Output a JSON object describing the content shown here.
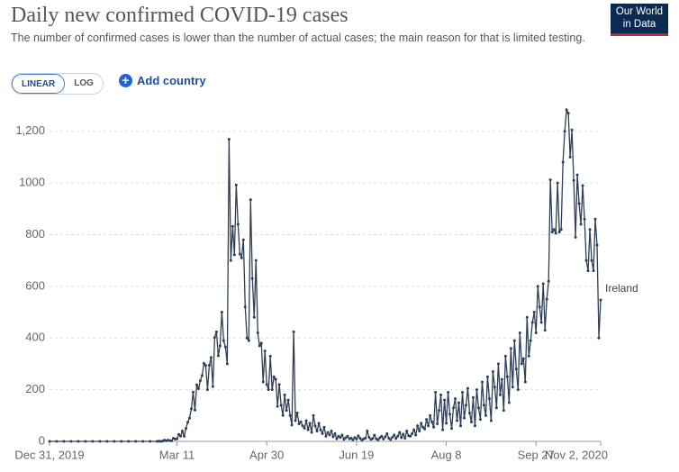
{
  "chart_data": {
    "type": "line",
    "title": "Daily new confirmed COVID-19 cases",
    "subtitle": "The number of confirmed cases is lower than the number of actual cases; the main reason for that is limited testing.",
    "xlim": [
      0,
      307
    ],
    "xticks": [
      {
        "value": 0,
        "label": "Dec 31, 2019"
      },
      {
        "value": 71,
        "label": "Mar 11"
      },
      {
        "value": 121,
        "label": "Apr 30"
      },
      {
        "value": 171,
        "label": "Jun 19"
      },
      {
        "value": 221,
        "label": "Aug 8"
      },
      {
        "value": 271,
        "label": "Sep 27"
      },
      {
        "value": 307,
        "label": "Nov 2, 2020"
      }
    ],
    "ylim": [
      0,
      1300
    ],
    "yticks": [
      0,
      200,
      400,
      600,
      800,
      1000,
      {
        "value": 1200,
        "label": "1,200"
      }
    ],
    "grid": true,
    "x": [
      0,
      4,
      8,
      12,
      16,
      20,
      24,
      28,
      32,
      36,
      40,
      44,
      48,
      52,
      56,
      60,
      61,
      62,
      63,
      64,
      65,
      66,
      67,
      68,
      69,
      70,
      71,
      72,
      73,
      74,
      75,
      76,
      77,
      78,
      79,
      80,
      81,
      82,
      83,
      84,
      85,
      86,
      87,
      88,
      89,
      90,
      91,
      92,
      93,
      94,
      95,
      96,
      97,
      98,
      99,
      100,
      101,
      102,
      103,
      104,
      105,
      106,
      107,
      108,
      109,
      110,
      111,
      112,
      113,
      114,
      115,
      116,
      117,
      118,
      119,
      120,
      121,
      122,
      123,
      124,
      125,
      126,
      127,
      128,
      129,
      130,
      131,
      132,
      133,
      134,
      135,
      136,
      137,
      138,
      139,
      140,
      141,
      142,
      143,
      144,
      145,
      146,
      147,
      148,
      149,
      150,
      151,
      152,
      153,
      154,
      155,
      156,
      157,
      158,
      159,
      160,
      161,
      162,
      163,
      164,
      165,
      166,
      167,
      168,
      169,
      170,
      171,
      172,
      173,
      174,
      175,
      176,
      177,
      178,
      179,
      180,
      181,
      182,
      183,
      184,
      185,
      186,
      187,
      188,
      189,
      190,
      191,
      192,
      193,
      194,
      195,
      196,
      197,
      198,
      199,
      200,
      201,
      202,
      203,
      204,
      205,
      206,
      207,
      208,
      209,
      210,
      211,
      212,
      213,
      214,
      215,
      216,
      217,
      218,
      219,
      220,
      221,
      222,
      223,
      224,
      225,
      226,
      227,
      228,
      229,
      230,
      231,
      232,
      233,
      234,
      235,
      236,
      237,
      238,
      239,
      240,
      241,
      242,
      243,
      244,
      245,
      246,
      247,
      248,
      249,
      250,
      251,
      252,
      253,
      254,
      255,
      256,
      257,
      258,
      259,
      260,
      261,
      262,
      263,
      264,
      265,
      266,
      267,
      268,
      269,
      270,
      271,
      272,
      273,
      274,
      275,
      276,
      277,
      278,
      279,
      280,
      281,
      282,
      283,
      284,
      285,
      286,
      287,
      288,
      289,
      290,
      291,
      292,
      293,
      294,
      295,
      296,
      297,
      298,
      299,
      300,
      301,
      302,
      303,
      304,
      305,
      306,
      307
    ],
    "series": [
      {
        "name": "Ireland",
        "color": "#2d3e55",
        "values": [
          0,
          0,
          0,
          0,
          0,
          0,
          0,
          0,
          0,
          0,
          0,
          0,
          0,
          0,
          0,
          0,
          1,
          0,
          1,
          5,
          2,
          5,
          3,
          2,
          12,
          9,
          10,
          27,
          20,
          40,
          20,
          50,
          74,
          90,
          126,
          191,
          121,
          219,
          204,
          235,
          255,
          302,
          294,
          200,
          295,
          325,
          212,
          402,
          424,
          331,
          370,
          500,
          390,
          365,
          300,
          1169,
          700,
          832,
          722,
          992,
          840,
          725,
          710,
          780,
          520,
          400,
          390,
          935,
          630,
          480,
          700,
          420,
          370,
          380,
          230,
          350,
          220,
          200,
          330,
          200,
          250,
          240,
          135,
          220,
          140,
          100,
          180,
          120,
          160,
          100,
          63,
          424,
          80,
          110,
          68,
          76,
          60,
          51,
          80,
          45,
          70,
          35,
          100,
          60,
          40,
          70,
          45,
          30,
          55,
          20,
          35,
          25,
          40,
          18,
          30,
          10,
          20,
          15,
          25,
          8,
          14,
          20,
          10,
          12,
          6,
          15,
          9,
          22,
          12,
          5,
          10,
          12,
          40,
          16,
          8,
          11,
          24,
          10,
          6,
          14,
          20,
          9,
          18,
          30,
          12,
          7,
          16,
          25,
          11,
          20,
          35,
          14,
          28,
          12,
          40,
          22,
          20,
          30,
          45,
          25,
          60,
          40,
          70,
          55,
          48,
          85,
          60,
          100,
          75,
          55,
          190,
          68,
          120,
          180,
          45,
          160,
          70,
          190,
          105,
          50,
          130,
          165,
          80,
          150,
          60,
          190,
          90,
          140,
          205,
          110,
          75,
          170,
          60,
          200,
          130,
          85,
          230,
          140,
          100,
          250,
          165,
          80,
          270,
          210,
          130,
          300,
          180,
          240,
          120,
          330,
          250,
          150,
          360,
          210,
          390,
          280,
          200,
          420,
          300,
          320,
          230,
          480,
          330,
          390,
          460,
          500,
          420,
          600,
          520,
          460,
          610,
          430,
          550,
          620,
          1012,
          810,
          820,
          805,
          1000,
          810,
          820,
          1080,
          1200,
          1283,
          1270,
          1100,
          1205,
          1010,
          790,
          1031,
          920,
          840,
          990,
          860,
          700,
          660,
          820,
          700,
          660,
          860,
          760,
          400,
          547
        ]
      }
    ]
  },
  "controls": {
    "linear": "LINEAR",
    "log": "LOG",
    "add_country": "Add country"
  },
  "logo": [
    "Our World",
    "in Data"
  ]
}
